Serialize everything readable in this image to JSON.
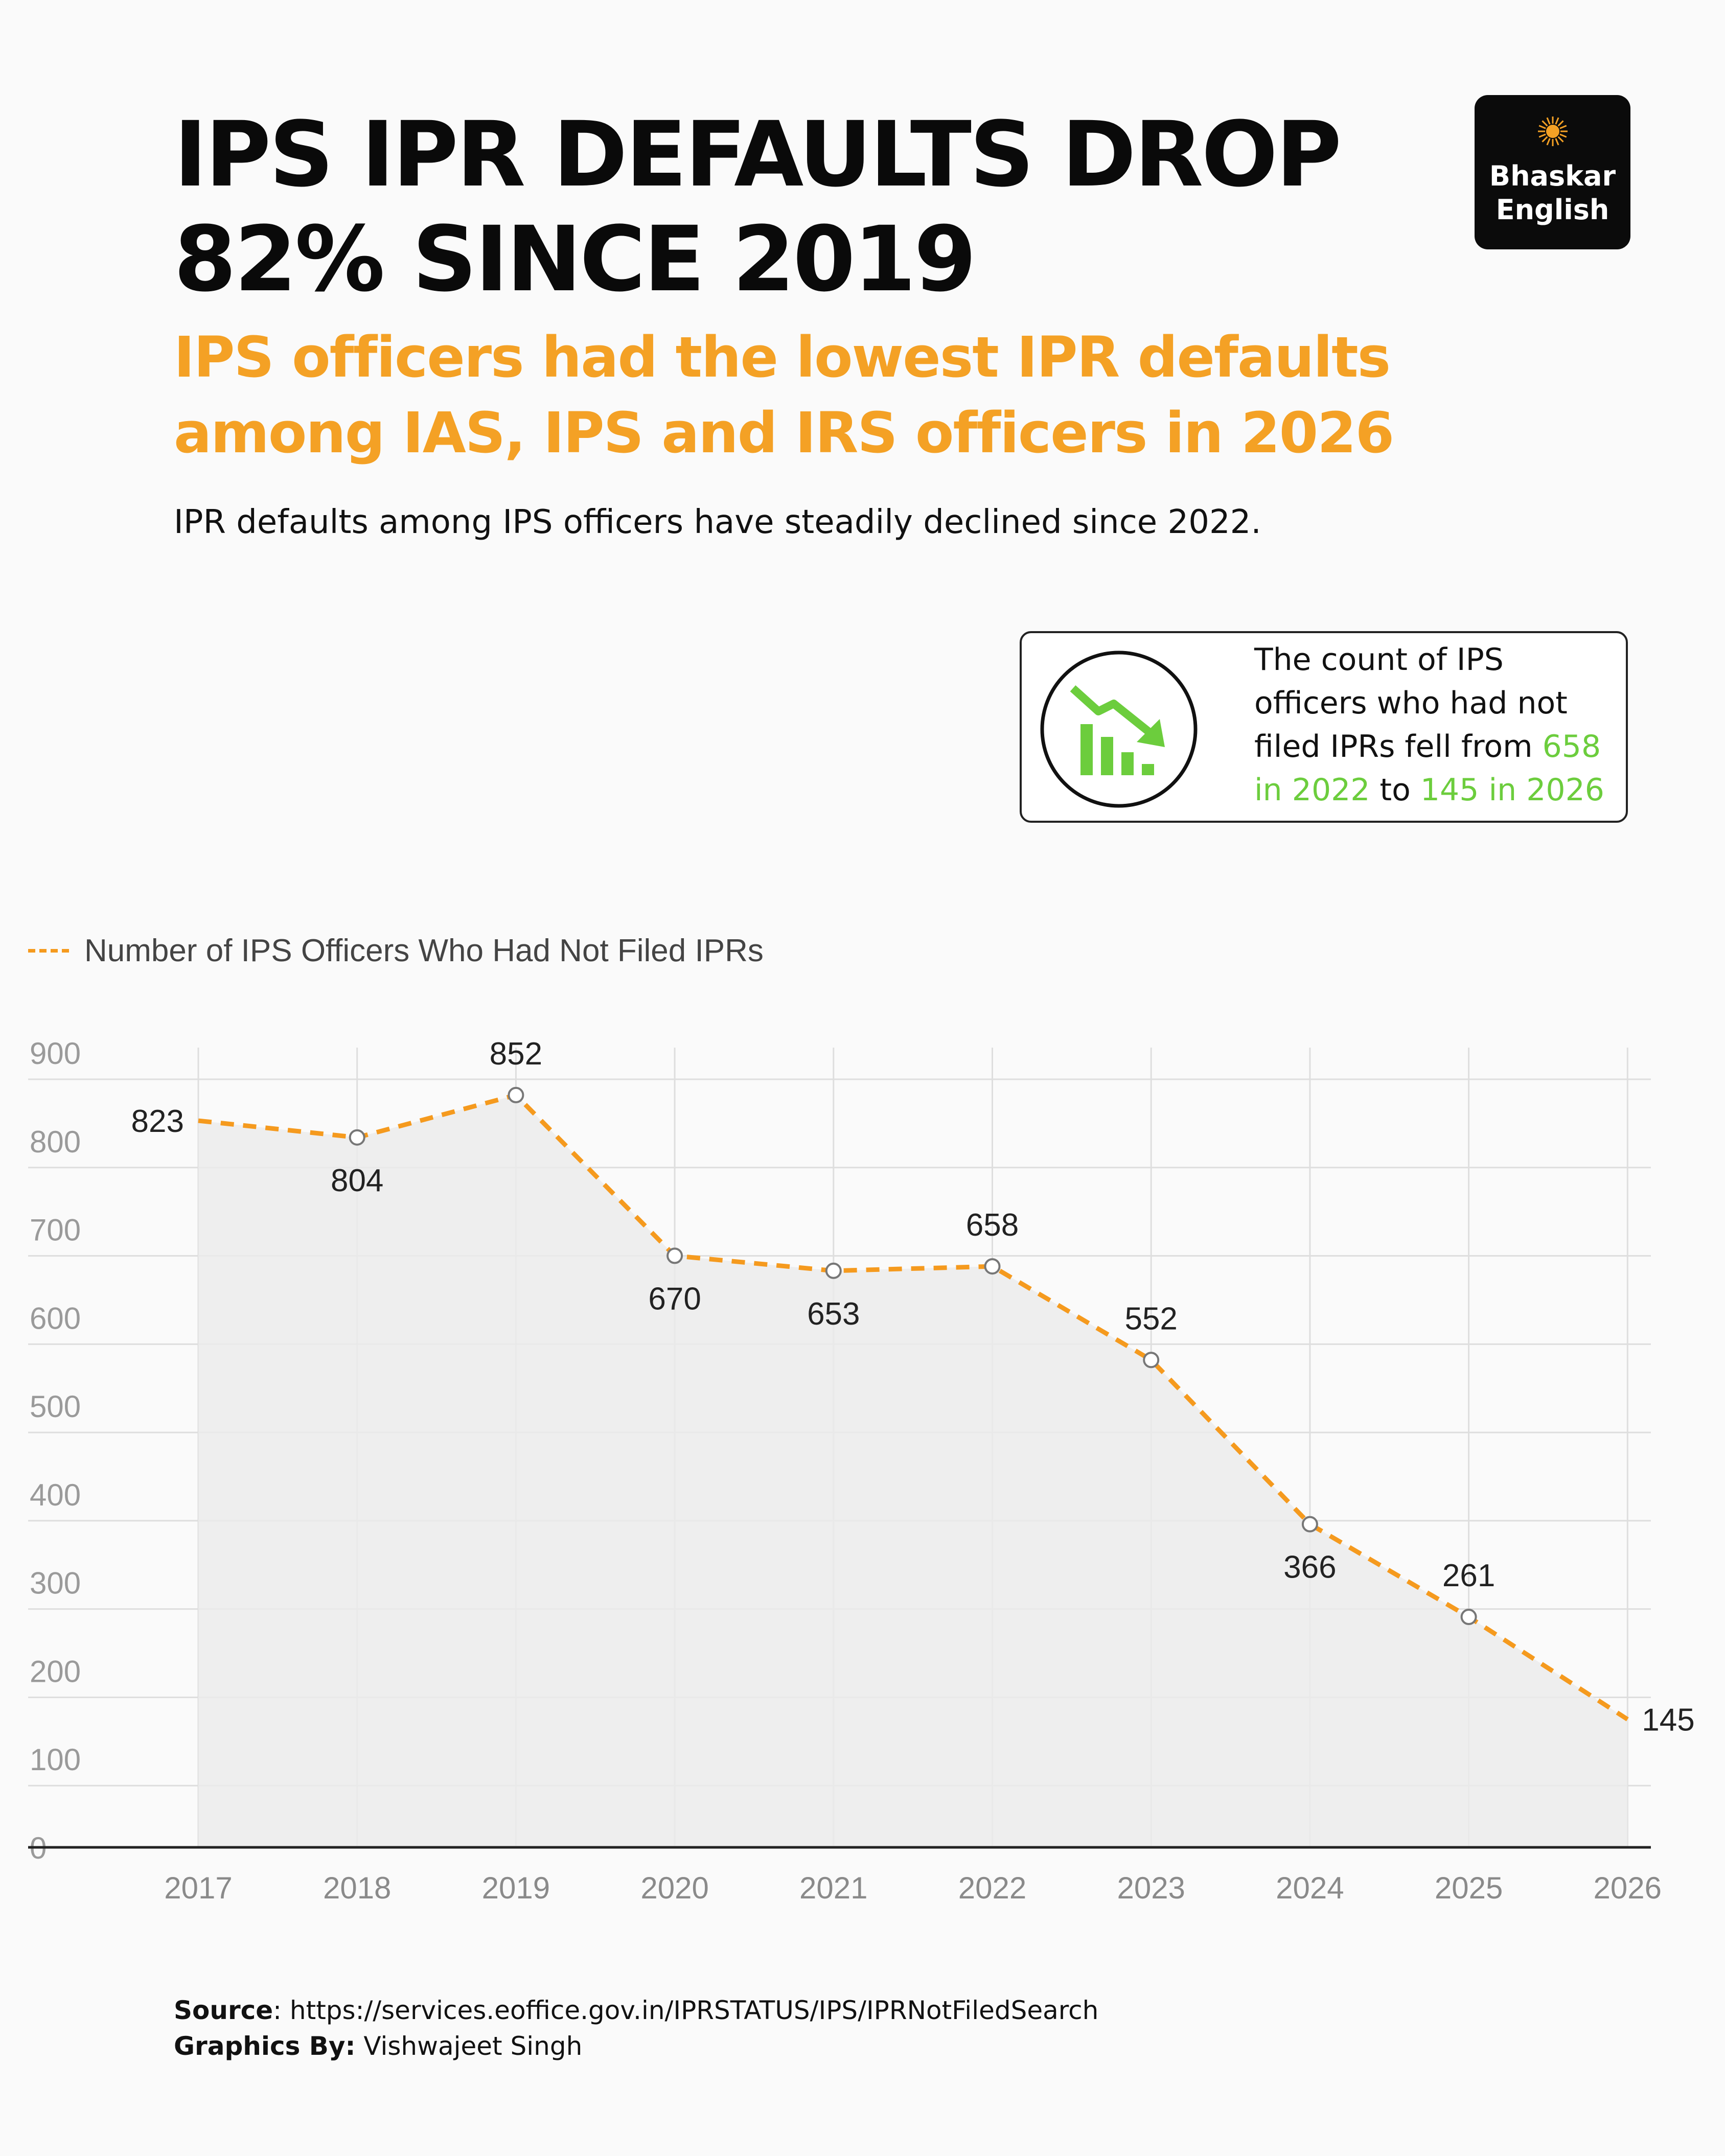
{
  "header": {
    "title_lines": [
      "IPS IPR DEFAULTS DROP",
      "82% SINCE 2019"
    ],
    "subtitle_lines": [
      "IPS officers had the lowest IPR defaults",
      "among IAS, IPS and IRS officers in 2026"
    ],
    "lede": "IPR defaults among IPS officers have steadily declined since 2022."
  },
  "logo": {
    "line1": "Bhaskar",
    "line2": "English",
    "icon": "sun-icon"
  },
  "callout": {
    "icon": "trend-down-chart-icon",
    "text_a": "The count of IPS officers who had not filed IPRs fell from ",
    "hl_1": "658 in 2022",
    "text_b": " to ",
    "hl_2": "145 in 2026"
  },
  "colors": {
    "accent": "#f4a125",
    "line": "#f59a1e",
    "highlight": "#6ccd3d",
    "area": "#ebebeb"
  },
  "chart_data": {
    "type": "line",
    "x": [
      "2017",
      "2018",
      "2019",
      "2020",
      "2021",
      "2022",
      "2023",
      "2024",
      "2025",
      "2026"
    ],
    "series": [
      {
        "name": "Number of IPS Officers Who Had Not Filed IPRs",
        "values": [
          823,
          804,
          852,
          670,
          653,
          658,
          552,
          366,
          261,
          145
        ]
      }
    ],
    "data_labels": [
      "823",
      "804",
      "852",
      "670",
      "653",
      "658",
      "552",
      "366",
      "261",
      "145"
    ],
    "ylim": [
      0,
      900
    ],
    "yticks": [
      "0",
      "100",
      "200",
      "300",
      "400",
      "500",
      "600",
      "700",
      "800",
      "900"
    ],
    "grid": true,
    "area_fill": true,
    "legend": "top-left"
  },
  "footer": {
    "source_label": "Source",
    "source_text": ": https://services.eoffice.gov.in/IPRSTATUS/IPS/IPRNotFiledSearch",
    "credit_label": "Graphics By:",
    "credit_text": " Vishwajeet Singh"
  }
}
